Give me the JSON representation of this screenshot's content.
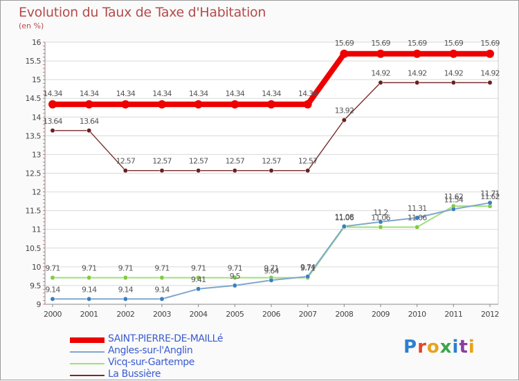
{
  "colors": {
    "background": "#fafafa",
    "plot_bg": "#ffffff",
    "grid": "#d9d9d9",
    "title": "#b54a4a",
    "legend_text": "#3a5bd0"
  },
  "logo": {
    "letters": [
      "P",
      "r",
      "o",
      "x",
      "i",
      "t",
      "i"
    ],
    "colors": [
      "#2d7fcf",
      "#e2462a",
      "#e9a21c",
      "#3aa64a",
      "#2d7fcf",
      "#8a3fa0",
      "#e9a21c"
    ]
  },
  "chart_data": {
    "type": "line",
    "title": "Evolution du Taux de Taxe d'Habitation",
    "unit": "(en %)",
    "xlabel": "",
    "ylabel": "",
    "x": [
      "2000",
      "2001",
      "2002",
      "2003",
      "2004",
      "2005",
      "2006",
      "2007",
      "2008",
      "2009",
      "2010",
      "2011",
      "2012"
    ],
    "ylim": [
      9,
      16
    ],
    "yticks": [
      "9",
      "9.5",
      "10",
      "10.5",
      "11",
      "11.5",
      "12",
      "12.5",
      "13",
      "13.5",
      "14",
      "14.5",
      "15",
      "15.5",
      "16"
    ],
    "grid": "horizontal",
    "legend_position": "bottom-left",
    "series": [
      {
        "name": "SAINT-PIERRE-DE-MAILLé",
        "color": "#ee0000",
        "width": 8,
        "values": [
          14.34,
          14.34,
          14.34,
          14.34,
          14.34,
          14.34,
          14.34,
          14.34,
          15.69,
          15.69,
          15.69,
          15.69,
          15.69
        ],
        "labels": [
          "14.34",
          "14.34",
          "14.34",
          "14.34",
          "14.34",
          "14.34",
          "14.34",
          "14.34",
          "15.69",
          "15.69",
          "15.69",
          "15.69",
          "15.69"
        ]
      },
      {
        "name": "Angles-sur-l'Anglin",
        "color": "#7ea7cd",
        "point_color": "#3a7fc0",
        "width": 2,
        "values": [
          9.14,
          9.14,
          9.14,
          9.14,
          9.41,
          9.5,
          9.64,
          9.74,
          11.08,
          11.2,
          11.31,
          11.54,
          11.71
        ],
        "labels": [
          "9.14",
          "9.14",
          "9.14",
          "9.14",
          "9.41",
          "9.5",
          "9.64",
          "9.74",
          "11.08",
          "11.2",
          "11.31",
          "11.54",
          "11.71"
        ]
      },
      {
        "name": "Vicq-sur-Gartempe",
        "color": "#9ee07a",
        "point_color": "#7fcc3f",
        "width": 2,
        "values": [
          9.71,
          9.71,
          9.71,
          9.71,
          9.71,
          9.71,
          9.71,
          9.71,
          11.06,
          11.06,
          11.06,
          11.62,
          11.62
        ],
        "labels": [
          "9.71",
          "9.71",
          "9.71",
          "9.71",
          "9.71",
          "9.71",
          "9.71",
          "9.71",
          "11.06",
          "11.06",
          "11.06",
          "11.62",
          "11.62"
        ]
      },
      {
        "name": "La Bussière",
        "color": "#7a2a2a",
        "point_color": "#6a1f1f",
        "width": 1.4,
        "values": [
          13.64,
          13.64,
          12.57,
          12.57,
          12.57,
          12.57,
          12.57,
          12.57,
          13.92,
          14.92,
          14.92,
          14.92,
          14.92
        ],
        "labels": [
          "13.64",
          "13.64",
          "12.57",
          "12.57",
          "12.57",
          "12.57",
          "12.57",
          "12.57",
          "13.92",
          "14.92",
          "14.92",
          "14.92",
          "14.92"
        ]
      }
    ]
  }
}
